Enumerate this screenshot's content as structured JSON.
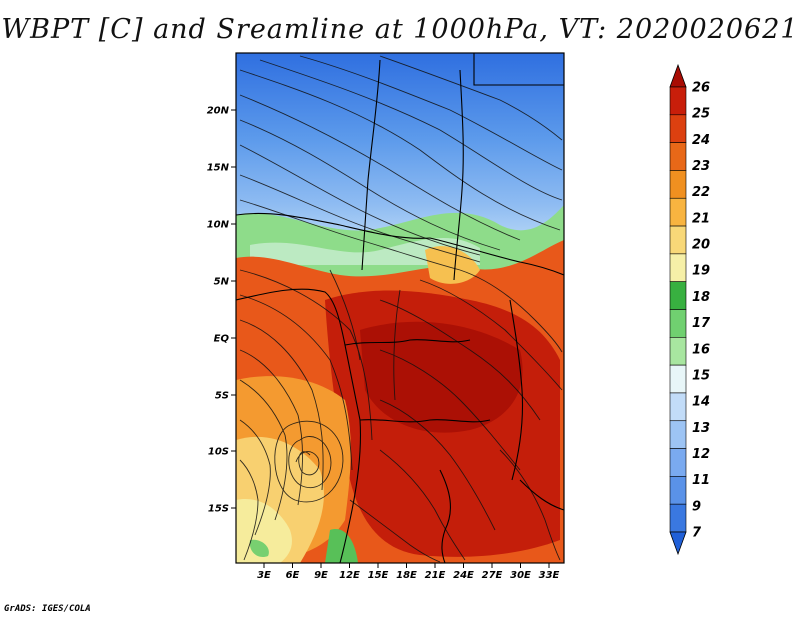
{
  "title": "WBPT [C] and Sreamline at 1000hPa, VT: 2020020621",
  "credit": "GrADS: IGES/COLA",
  "map": {
    "lat_ticks": [
      "20N",
      "15N",
      "10N",
      "5N",
      "EQ",
      "5S",
      "10S",
      "15S"
    ],
    "lon_ticks": [
      "3E",
      "6E",
      "9E",
      "12E",
      "15E",
      "18E",
      "21E",
      "24E",
      "27E",
      "30E",
      "33E"
    ]
  },
  "colorbar": {
    "labels": [
      "7",
      "9",
      "11",
      "12",
      "13",
      "14",
      "15",
      "16",
      "17",
      "18",
      "19",
      "20",
      "21",
      "22",
      "23",
      "24",
      "25",
      "26"
    ],
    "colors": [
      "#2060d8",
      "#3a78e0",
      "#5a92e8",
      "#7aaaf0",
      "#9dc4f4",
      "#c2dcf8",
      "#e8f6f8",
      "#a8e6a0",
      "#70d070",
      "#38b040",
      "#f6f0a8",
      "#f8d878",
      "#f8b440",
      "#f09020",
      "#e86818",
      "#dc4010",
      "#c81e0a",
      "#a80c04"
    ]
  }
}
